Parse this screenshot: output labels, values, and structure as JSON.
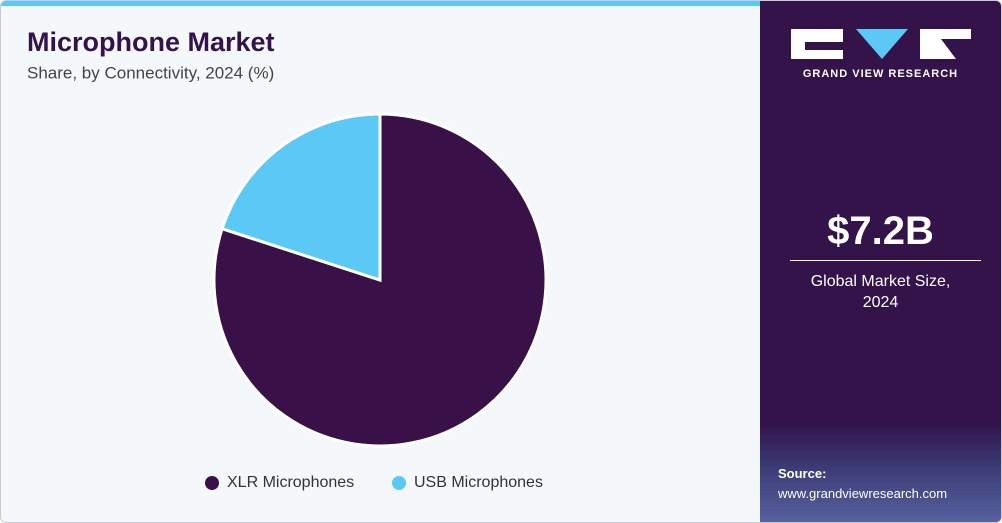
{
  "chart_data": {
    "type": "pie",
    "title": "Microphone Market",
    "subtitle": "Share, by Connectivity, 2024 (%)",
    "categories": [
      "XLR Microphones",
      "USB Microphones"
    ],
    "values": [
      80,
      20
    ],
    "colors": [
      "#3a1048",
      "#5bc8f5"
    ]
  },
  "sidebar": {
    "brand": "GRAND VIEW RESEARCH",
    "market_size": "$7.2B",
    "market_size_label": "Global Market Size, 2024",
    "source_label": "Source:",
    "source_url": "www.grandviewresearch.com"
  }
}
